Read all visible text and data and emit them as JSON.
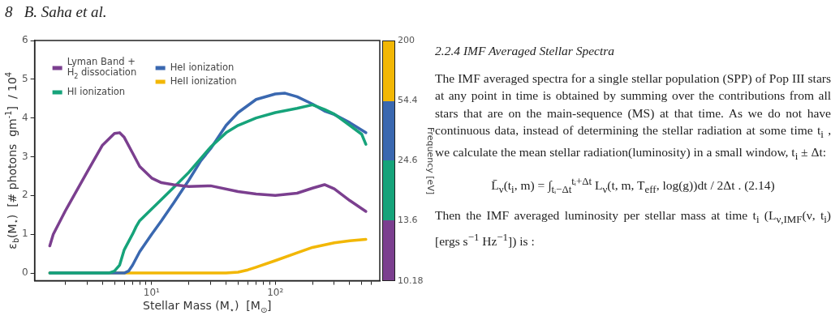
{
  "chart_data": {
    "type": "line",
    "xlabel": "Stellar Mass (M$_{⋆}$)  [M$_{⊙}$]",
    "ylabel": "ε$_{b}$(M$_{⋆}$)  [# photons  gm$^{-1}$]  / 10$^{4}$",
    "clabel": "Frequency [eV]",
    "log": "x",
    "xlim": [
      1.13,
      700
    ],
    "ylim": [
      -0.2,
      6
    ],
    "xticks": [
      {
        "value": 2,
        "label": null
      },
      {
        "value": 3,
        "label": null
      },
      {
        "value": 4,
        "label": null
      },
      {
        "value": 5,
        "label": null
      },
      {
        "value": 6,
        "label": null
      },
      {
        "value": 7,
        "label": null
      },
      {
        "value": 8,
        "label": null
      },
      {
        "value": 9,
        "label": null
      },
      {
        "value": 10,
        "label": "10¹"
      },
      {
        "value": 20,
        "label": null
      },
      {
        "value": 30,
        "label": null
      },
      {
        "value": 40,
        "label": null
      },
      {
        "value": 50,
        "label": null
      },
      {
        "value": 60,
        "label": null
      },
      {
        "value": 70,
        "label": null
      },
      {
        "value": 80,
        "label": null
      },
      {
        "value": 90,
        "label": null
      },
      {
        "value": 100,
        "label": "10²"
      },
      {
        "value": 200,
        "label": null
      },
      {
        "value": 300,
        "label": null
      },
      {
        "value": 400,
        "label": null
      },
      {
        "value": 500,
        "label": null
      },
      {
        "value": 600,
        "label": null
      }
    ],
    "yticks": [
      0,
      1,
      2,
      3,
      4,
      5,
      6
    ],
    "legend": "top left",
    "annotations": [
      "8   B. Saha et al.",
      "2.2.4  IMF Averaged Stellar Spectra",
      "The IMF averaged spectra for a single stellar population (SPP) of Pop III stars at any point in time is obtained by summing over the contributions from all stars that are on the main-sequence (MS) at that time. As we do not have continuous data, instead of determining the stellar radiation at some time t$_{i}$ , we calculate the mean stellar radiation(luminosity) in a small window, t$_{i}$ ± Δt:",
      "L̄$_{ν}$(t$_{i}$, m) = ∫$_{tᵢ−Δt}$$^{tᵢ+Δt}$ L$_{ν}$(t, m, T$_{eff}$, log(g))dt / 2Δt .      (2.14)",
      "Then the IMF averaged luminosity per stellar mass at time t$_{i}$ (L$_{ν,IMF}$(ν, t$_{i}$)[ergs s$^{−1}$ Hz$^{−1}$]) is :",
      "10.18",
      "13.6",
      "24.6",
      "54.4",
      "200"
    ],
    "series": [
      {
        "name": "Lyman Band +\nH$_{2}$ dissociation",
        "color": "#7b3f8f",
        "x": [
          1.5,
          1.6,
          2,
          3,
          4,
          5,
          5.5,
          6,
          7,
          8,
          10,
          12,
          15,
          20,
          30,
          50,
          70,
          100,
          150,
          200,
          250,
          300,
          400,
          540
        ],
        "values": [
          0.7,
          1.0,
          1.6,
          2.6,
          3.3,
          3.6,
          3.62,
          3.5,
          3.1,
          2.75,
          2.45,
          2.33,
          2.28,
          2.23,
          2.25,
          2.1,
          2.04,
          2.0,
          2.06,
          2.19,
          2.28,
          2.17,
          1.87,
          1.59
        ]
      },
      {
        "name": "HI ionization",
        "color": "#16a37a",
        "x": [
          1.5,
          4.5,
          5,
          5.5,
          6,
          7,
          7.5,
          8,
          10,
          12,
          15,
          20,
          30,
          40,
          50,
          70,
          100,
          150,
          200,
          250,
          300,
          400,
          500,
          540
        ],
        "values": [
          0,
          0,
          0.05,
          0.2,
          0.6,
          1.0,
          1.2,
          1.35,
          1.65,
          1.9,
          2.2,
          2.6,
          3.25,
          3.62,
          3.81,
          4.0,
          4.14,
          4.25,
          4.34,
          4.22,
          4.1,
          3.81,
          3.58,
          3.32
        ]
      },
      {
        "name": "HeI ionization",
        "color": "#3a68b0",
        "x": [
          1.5,
          6,
          6.5,
          7,
          8,
          10,
          12,
          15,
          20,
          25,
          30,
          40,
          50,
          70,
          100,
          120,
          150,
          200,
          250,
          300,
          400,
          540
        ],
        "values": [
          0,
          0,
          0.05,
          0.2,
          0.55,
          1.0,
          1.35,
          1.8,
          2.4,
          2.9,
          3.21,
          3.81,
          4.14,
          4.48,
          4.62,
          4.64,
          4.55,
          4.36,
          4.18,
          4.09,
          3.88,
          3.62
        ]
      },
      {
        "name": "HeII ionization",
        "color": "#f2b705",
        "x": [
          1.5,
          40,
          50,
          60,
          70,
          100,
          150,
          200,
          300,
          400,
          540
        ],
        "values": [
          0,
          0,
          0.02,
          0.08,
          0.15,
          0.32,
          0.52,
          0.66,
          0.78,
          0.83,
          0.87
        ]
      }
    ]
  }
}
